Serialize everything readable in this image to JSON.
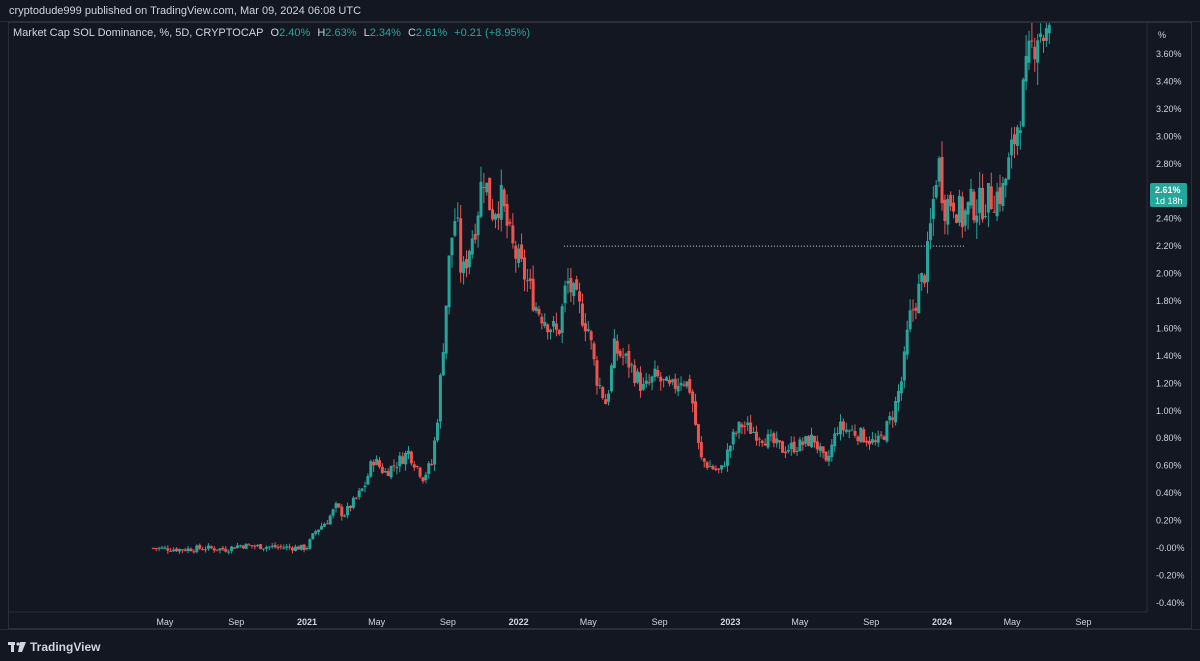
{
  "header": {
    "published": "cryptodude999 published on TradingView.com, Mar 09, 2024 06:08 UTC"
  },
  "legend": {
    "symbol": "Market Cap SOL Dominance, %, 5D, CRYPTOCAP",
    "o_label": "O",
    "o_value": "2.40%",
    "h_label": "H",
    "h_value": "2.63%",
    "l_label": "L",
    "l_value": "2.34%",
    "c_label": "C",
    "c_value": "2.61%",
    "change": "+0.21 (+8.95%)"
  },
  "footer": {
    "brand": "TradingView"
  },
  "colors": {
    "up": "#26a69a",
    "down": "#ef5350",
    "background": "#131722",
    "grid": "#2a2e39",
    "text": "#d1d4dc"
  },
  "chart_data": {
    "type": "candlestick",
    "y_unit_label": "%",
    "y_ticks": [
      "3.60%",
      "3.40%",
      "3.20%",
      "3.00%",
      "2.80%",
      "2.60%",
      "2.40%",
      "2.20%",
      "2.00%",
      "1.80%",
      "1.60%",
      "1.40%",
      "1.20%",
      "1.00%",
      "0.80%",
      "0.60%",
      "0.40%",
      "0.20%",
      "-0.00%",
      "-0.20%",
      "-0.40%"
    ],
    "x_ticks": [
      "May",
      "Sep",
      "2021",
      "May",
      "Sep",
      "2022",
      "May",
      "Sep",
      "2023",
      "May",
      "Sep",
      "2024",
      "May",
      "Sep"
    ],
    "ylim": [
      -0.45,
      3.85
    ],
    "xlim": [
      "2020-03-10",
      "2024-10-31"
    ],
    "last_price_label": "2.61%",
    "countdown_label": "1d 18h",
    "horizontal_level": {
      "value": 2.2,
      "from": "2022-03-20",
      "to": "2024-02-10"
    },
    "close_path": [
      [
        "2020-04-11",
        0.0
      ],
      [
        "2020-05-30",
        -0.01
      ],
      [
        "2020-07-10",
        0.0
      ],
      [
        "2020-08-15",
        -0.01
      ],
      [
        "2020-09-05",
        0.02
      ],
      [
        "2020-10-20",
        0.01
      ],
      [
        "2020-12-31",
        0.0
      ],
      [
        "2021-01-15",
        0.12
      ],
      [
        "2021-02-05",
        0.2
      ],
      [
        "2021-02-20",
        0.3
      ],
      [
        "2021-03-05",
        0.24
      ],
      [
        "2021-03-25",
        0.35
      ],
      [
        "2021-04-10",
        0.45
      ],
      [
        "2021-04-25",
        0.65
      ],
      [
        "2021-05-15",
        0.55
      ],
      [
        "2021-06-05",
        0.62
      ],
      [
        "2021-06-25",
        0.7
      ],
      [
        "2021-07-20",
        0.52
      ],
      [
        "2021-08-05",
        0.62
      ],
      [
        "2021-08-15",
        1.0
      ],
      [
        "2021-08-25",
        1.55
      ],
      [
        "2021-09-05",
        2.2
      ],
      [
        "2021-09-15",
        2.45
      ],
      [
        "2021-09-25",
        1.95
      ],
      [
        "2021-10-05",
        2.15
      ],
      [
        "2021-10-20",
        2.4
      ],
      [
        "2021-11-01",
        2.75
      ],
      [
        "2021-11-15",
        2.45
      ],
      [
        "2021-12-01",
        2.55
      ],
      [
        "2021-12-20",
        2.2
      ],
      [
        "2022-01-15",
        1.95
      ],
      [
        "2022-02-01",
        1.75
      ],
      [
        "2022-02-20",
        1.65
      ],
      [
        "2022-03-10",
        1.55
      ],
      [
        "2022-03-25",
        1.95
      ],
      [
        "2022-04-10",
        1.8
      ],
      [
        "2022-05-01",
        1.6
      ],
      [
        "2022-05-15",
        1.25
      ],
      [
        "2022-06-01",
        1.05
      ],
      [
        "2022-06-15",
        1.45
      ],
      [
        "2022-07-10",
        1.35
      ],
      [
        "2022-08-05",
        1.15
      ],
      [
        "2022-08-25",
        1.25
      ],
      [
        "2022-09-20",
        1.15
      ],
      [
        "2022-10-10",
        1.25
      ],
      [
        "2022-10-25",
        1.15
      ],
      [
        "2022-11-10",
        0.65
      ],
      [
        "2022-11-25",
        0.6
      ],
      [
        "2022-12-15",
        0.55
      ],
      [
        "2023-01-05",
        0.8
      ],
      [
        "2023-01-20",
        0.9
      ],
      [
        "2023-02-10",
        0.85
      ],
      [
        "2023-03-10",
        0.78
      ],
      [
        "2023-04-01",
        0.72
      ],
      [
        "2023-05-01",
        0.75
      ],
      [
        "2023-05-25",
        0.8
      ],
      [
        "2023-06-15",
        0.6
      ],
      [
        "2023-07-05",
        0.88
      ],
      [
        "2023-08-01",
        0.85
      ],
      [
        "2023-08-25",
        0.8
      ],
      [
        "2023-09-10",
        0.75
      ],
      [
        "2023-09-25",
        0.85
      ],
      [
        "2023-10-10",
        1.0
      ],
      [
        "2023-10-25",
        1.25
      ],
      [
        "2023-11-05",
        1.65
      ],
      [
        "2023-11-20",
        1.85
      ],
      [
        "2023-12-05",
        2.05
      ],
      [
        "2023-12-15",
        2.45
      ],
      [
        "2023-12-25",
        2.85
      ],
      [
        "2024-01-05",
        2.5
      ],
      [
        "2024-01-20",
        2.55
      ],
      [
        "2024-02-05",
        2.4
      ],
      [
        "2024-02-20",
        2.5
      ],
      [
        "2024-03-05",
        2.5
      ],
      [
        "2024-03-25",
        2.55
      ],
      [
        "2024-04-15",
        2.6
      ],
      [
        "2024-05-01",
        2.9
      ],
      [
        "2024-05-20",
        3.3
      ],
      [
        "2024-06-01",
        3.6
      ],
      [
        "2024-06-15",
        3.8
      ],
      [
        "2024-07-05",
        3.7
      ]
    ]
  }
}
